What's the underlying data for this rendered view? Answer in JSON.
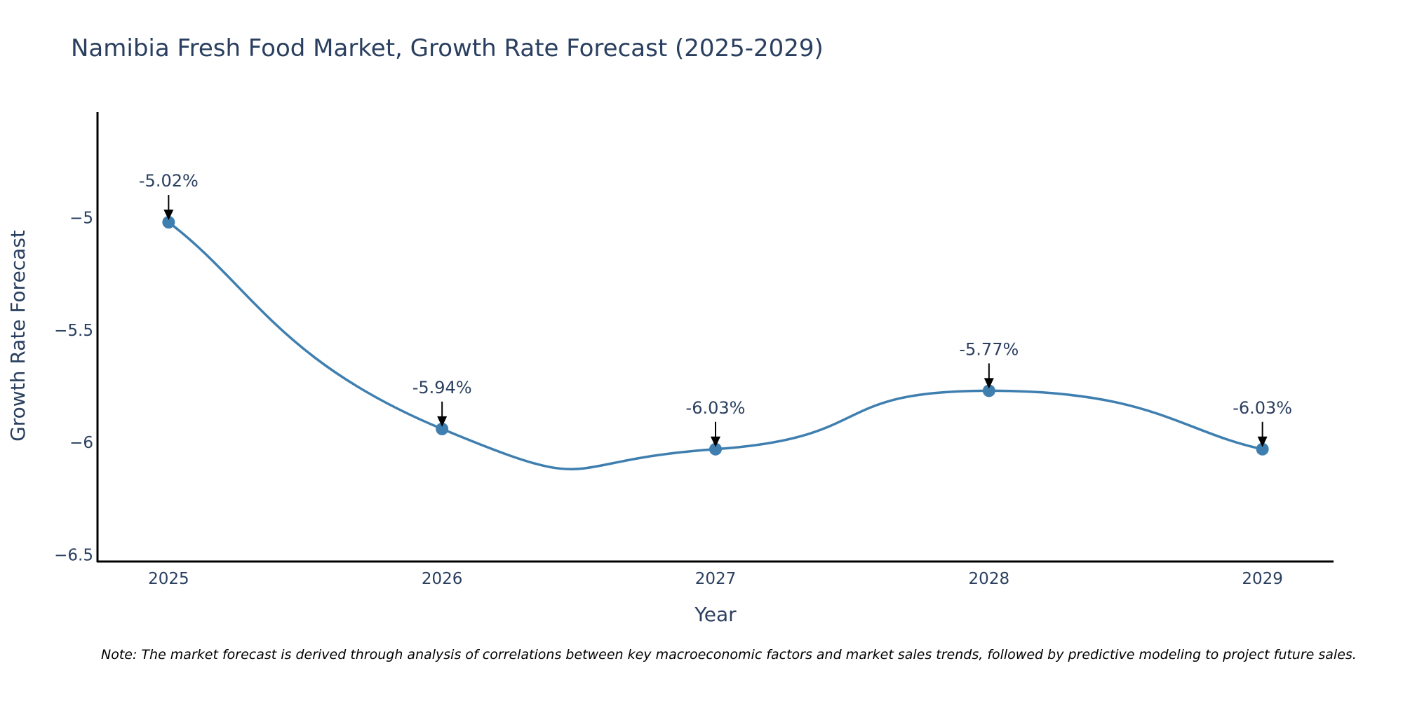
{
  "chart_data": {
    "type": "line",
    "title": "Namibia Fresh Food Market, Growth Rate Forecast (2025-2029)",
    "xlabel": "Year",
    "ylabel": "Growth Rate Forecast",
    "categories": [
      "2025",
      "2026",
      "2027",
      "2028",
      "2029"
    ],
    "series": [
      {
        "name": "Growth Rate Forecast",
        "values": [
          -5.02,
          -5.94,
          -6.03,
          -5.77,
          -6.03
        ],
        "labels": [
          "-5.02%",
          "-5.94%",
          "-6.03%",
          "-5.77%",
          "-6.03%"
        ],
        "color": "#3f7fb0"
      }
    ],
    "yticks": [
      -5,
      -5.5,
      -6,
      -6.5
    ],
    "ytick_labels": [
      "−5",
      "−5.5",
      "−6",
      "−6.5"
    ],
    "ylim": [
      -6.53,
      -4.53
    ],
    "xlim": [
      2024.74,
      2029.26
    ],
    "grid": false,
    "line_shape": "spline"
  },
  "note": "Note: The market forecast is derived through analysis of correlations between key macroeconomic factors and market sales trends, followed by predictive modeling to project future sales.",
  "colors": {
    "text": "#2a3f5f",
    "axis": "#000000",
    "line": "#3f7fb0",
    "marker": "#3f7fb0"
  }
}
